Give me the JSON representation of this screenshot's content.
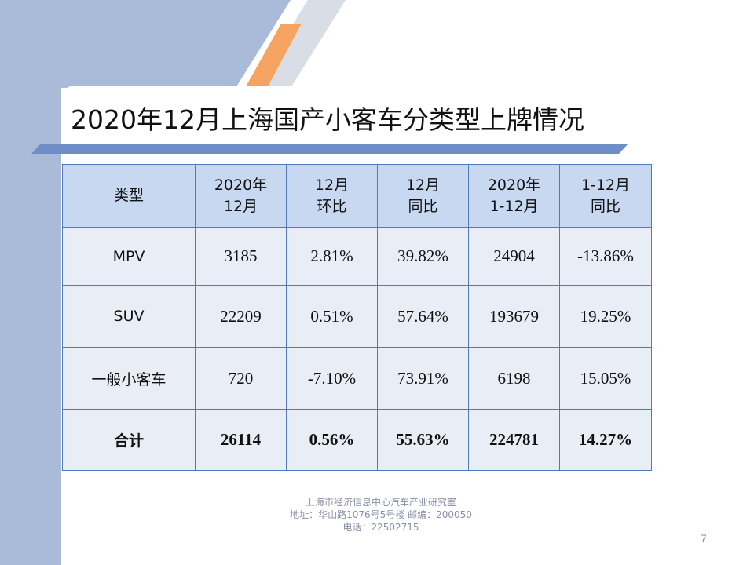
{
  "title": "2020年12月上海国产小客车分类型上牌情况",
  "table": {
    "headers": [
      [
        "类型"
      ],
      [
        "2020年",
        "12月"
      ],
      [
        "12月",
        "环比"
      ],
      [
        "12月",
        "同比"
      ],
      [
        "2020年",
        "1-12月"
      ],
      [
        "1-12月",
        "同比"
      ]
    ],
    "rows": [
      [
        "MPV",
        "3185",
        "2.81%",
        "39.82%",
        "24904",
        "-13.86%"
      ],
      [
        "SUV",
        "22209",
        "0.51%",
        "57.64%",
        "193679",
        "19.25%"
      ],
      [
        "一般小客车",
        "720",
        "-7.10%",
        "73.91%",
        "6198",
        "15.05%"
      ],
      [
        "合计",
        "26114",
        "0.56%",
        "55.63%",
        "224781",
        "14.27%"
      ]
    ]
  },
  "footer": {
    "org": "上海市经济信息中心汽车产业研究室",
    "address": "地址：华山路1076号5号楼    邮编：200050",
    "phone": "电话：22502715"
  },
  "page_number": "7",
  "colors": {
    "band": "#a9bbd9",
    "stripe_orange": "#f4a460",
    "stripe_gray": "#d9dde6",
    "header_bg": "#c7d8f0",
    "cell_bg": "#e9edf5",
    "border": "#4f7bbd"
  }
}
